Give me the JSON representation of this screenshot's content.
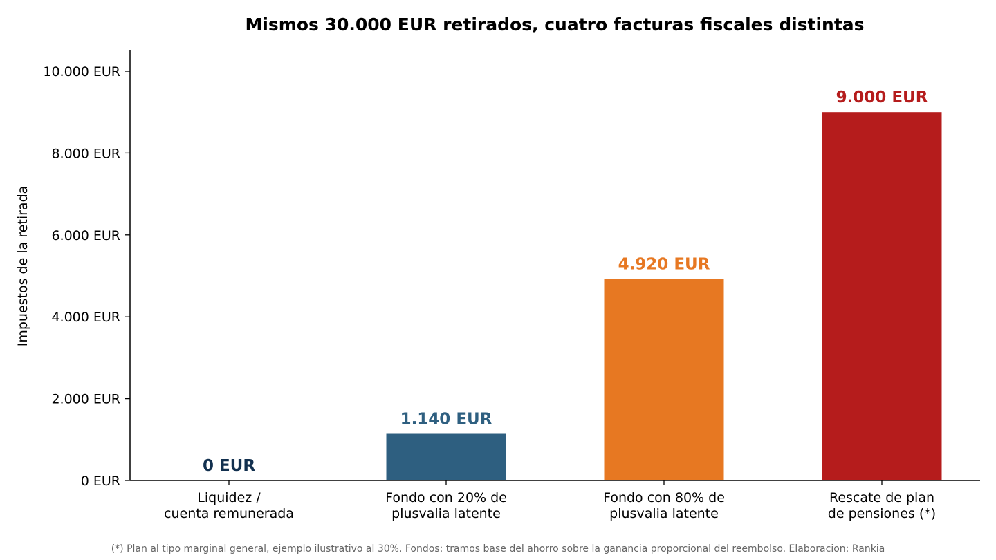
{
  "chart_data": {
    "type": "bar",
    "title": "Mismos 30.000 EUR retirados, cuatro facturas fiscales distintas",
    "ylabel": "Impuestos de la retirada",
    "xlabel": "",
    "ylim": [
      0,
      10500
    ],
    "yticks": [
      {
        "value": 0,
        "label": "0 EUR"
      },
      {
        "value": 2000,
        "label": "2.000 EUR"
      },
      {
        "value": 4000,
        "label": "4.000 EUR"
      },
      {
        "value": 6000,
        "label": "6.000 EUR"
      },
      {
        "value": 8000,
        "label": "8.000 EUR"
      },
      {
        "value": 10000,
        "label": "10.000 EUR"
      }
    ],
    "categories": [
      [
        "Liquidez /",
        "cuenta remunerada"
      ],
      [
        "Fondo con 20% de",
        "plusvalia latente"
      ],
      [
        "Fondo con 80% de",
        "plusvalia latente"
      ],
      [
        "Rescate de plan",
        "de pensiones (*)"
      ]
    ],
    "values": [
      0,
      1140,
      4920,
      9000
    ],
    "data_labels": [
      "0 EUR",
      "1.140 EUR",
      "4.920 EUR",
      "9.000 EUR"
    ],
    "colors": [
      "#12304f",
      "#2e5f80",
      "#e77822",
      "#b51c1c"
    ],
    "grid": false,
    "legend": "none",
    "footnote": "(*) Plan al tipo marginal general, ejemplo ilustrativo al 30%. Fondos: tramos base del ahorro sobre la ganancia proporcional del reembolso. Elaboracion: Rankia"
  }
}
